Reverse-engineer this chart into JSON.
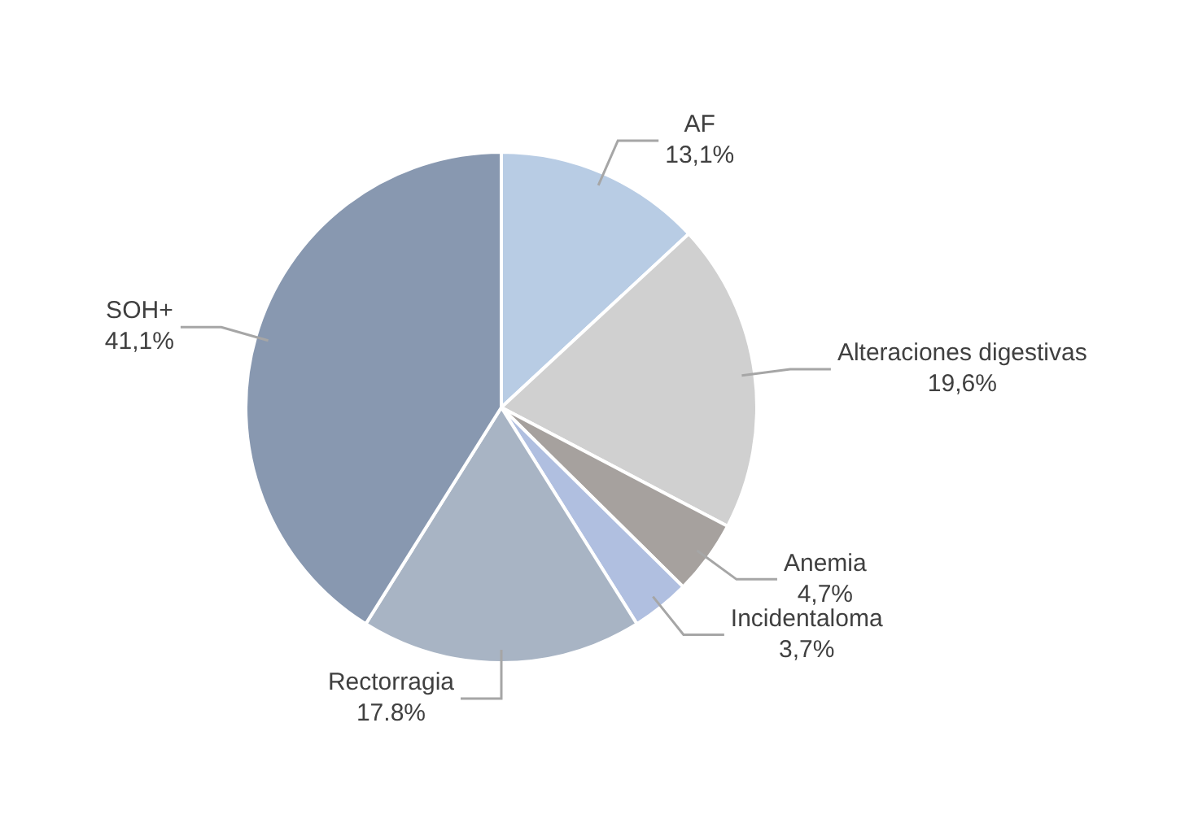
{
  "chart_data": {
    "type": "pie",
    "categories": [
      "AF",
      "Alteraciones digestivas",
      "Anemia",
      "Incidentaloma",
      "Rectorragia",
      "SOH+"
    ],
    "values": [
      13.1,
      19.6,
      4.7,
      3.7,
      17.8,
      41.1
    ],
    "value_labels": [
      "13,1%",
      "19,6%",
      "4,7%",
      "3,7%",
      "17.8%",
      "41,1%"
    ],
    "colors": [
      "#b8cce4",
      "#d0d0d0",
      "#a6a19e",
      "#b0bfe0",
      "#a8b4c4",
      "#8898b0"
    ],
    "legend": false
  }
}
